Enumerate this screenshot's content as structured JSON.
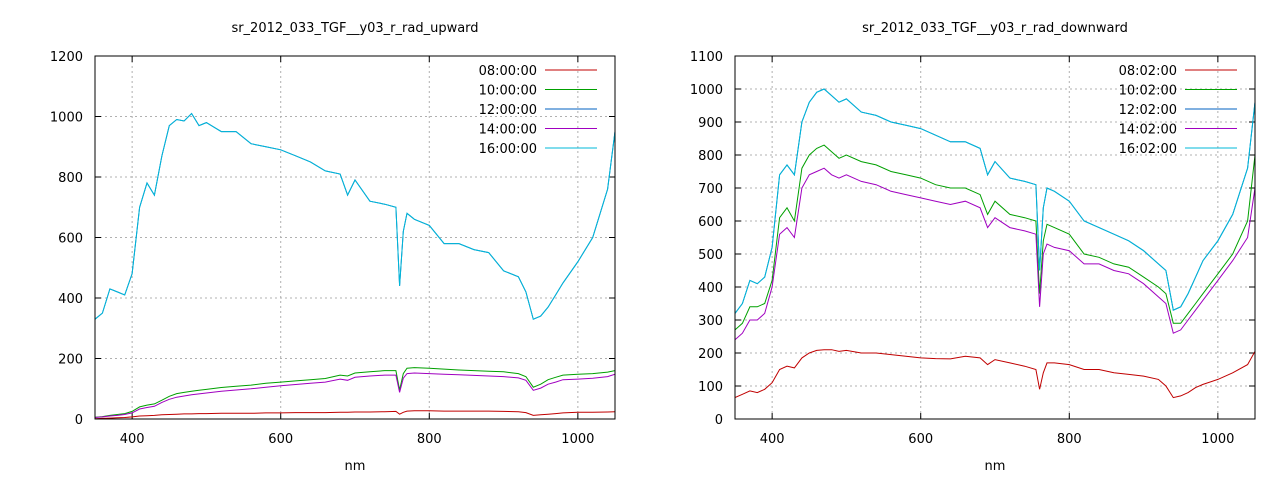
{
  "chart_data": [
    {
      "type": "line",
      "title": "sr_2012_033_TGF__y03_r_rad_upward",
      "xlabel": "nm",
      "ylabel": "",
      "xlim": [
        350,
        1050
      ],
      "ylim": [
        0,
        1200
      ],
      "xticks": [
        400,
        600,
        800,
        1000
      ],
      "yticks": [
        0,
        200,
        400,
        600,
        800,
        1000,
        1200
      ],
      "grid": true,
      "legend_position": "top-right",
      "x": [
        350,
        360,
        370,
        380,
        390,
        400,
        410,
        420,
        430,
        440,
        450,
        460,
        470,
        480,
        490,
        500,
        520,
        540,
        560,
        580,
        600,
        620,
        640,
        660,
        680,
        690,
        700,
        720,
        740,
        755,
        760,
        765,
        770,
        780,
        800,
        820,
        840,
        860,
        880,
        900,
        920,
        930,
        940,
        950,
        960,
        970,
        980,
        1000,
        1020,
        1040,
        1050
      ],
      "series": [
        {
          "name": "08:00:00",
          "color": "#c00000",
          "values": [
            1,
            2,
            3,
            4,
            5,
            7,
            10,
            11,
            12,
            14,
            15,
            16,
            17,
            17,
            18,
            18,
            19,
            19,
            19,
            20,
            20,
            21,
            21,
            21,
            22,
            22,
            23,
            23,
            24,
            25,
            16,
            22,
            26,
            27,
            27,
            26,
            26,
            26,
            26,
            25,
            24,
            21,
            12,
            14,
            16,
            18,
            20,
            22,
            22,
            23,
            24
          ]
        },
        {
          "name": "10:00:00",
          "color": "#00a000",
          "values": [
            6,
            8,
            12,
            15,
            18,
            25,
            40,
            46,
            50,
            62,
            75,
            84,
            88,
            92,
            95,
            98,
            104,
            108,
            112,
            118,
            122,
            126,
            130,
            134,
            145,
            142,
            152,
            156,
            160,
            160,
            96,
            150,
            168,
            170,
            168,
            165,
            162,
            160,
            158,
            156,
            150,
            140,
            105,
            115,
            130,
            138,
            145,
            148,
            150,
            155,
            160
          ]
        },
        {
          "name": "12:00:00",
          "color": "#0060c0",
          "values": [
            330,
            350,
            430,
            420,
            410,
            480,
            700,
            780,
            740,
            870,
            970,
            990,
            985,
            1010,
            970,
            980,
            950,
            950,
            910,
            900,
            890,
            870,
            850,
            820,
            810,
            740,
            790,
            720,
            710,
            700,
            440,
            620,
            680,
            660,
            640,
            580,
            580,
            560,
            550,
            490,
            470,
            420,
            330,
            340,
            370,
            410,
            450,
            520,
            600,
            760,
            950
          ]
        },
        {
          "name": "14:00:00",
          "color": "#a000c0",
          "values": [
            5,
            7,
            10,
            12,
            15,
            20,
            33,
            38,
            42,
            55,
            65,
            72,
            76,
            80,
            83,
            86,
            92,
            96,
            100,
            105,
            110,
            114,
            118,
            122,
            132,
            128,
            138,
            142,
            145,
            145,
            88,
            135,
            150,
            152,
            150,
            148,
            146,
            144,
            142,
            140,
            136,
            128,
            95,
            102,
            115,
            122,
            130,
            132,
            135,
            140,
            148
          ]
        },
        {
          "name": "16:00:00",
          "color": "#00b8d8",
          "values": [
            330,
            350,
            430,
            420,
            410,
            480,
            700,
            780,
            740,
            870,
            970,
            990,
            985,
            1010,
            970,
            980,
            950,
            950,
            910,
            900,
            890,
            870,
            850,
            820,
            810,
            740,
            790,
            720,
            710,
            700,
            440,
            620,
            680,
            660,
            640,
            580,
            580,
            560,
            550,
            490,
            470,
            420,
            330,
            340,
            370,
            410,
            450,
            520,
            600,
            760,
            950
          ]
        }
      ]
    },
    {
      "type": "line",
      "title": "sr_2012_033_TGF__y03_r_rad_downward",
      "xlabel": "nm",
      "ylabel": "",
      "xlim": [
        350,
        1050
      ],
      "ylim": [
        0,
        1100
      ],
      "xticks": [
        400,
        600,
        800,
        1000
      ],
      "yticks": [
        0,
        100,
        200,
        300,
        400,
        500,
        600,
        700,
        800,
        900,
        1000,
        1100
      ],
      "grid": true,
      "legend_position": "top-right",
      "x": [
        350,
        360,
        370,
        380,
        390,
        400,
        410,
        420,
        430,
        440,
        450,
        460,
        470,
        480,
        490,
        500,
        520,
        540,
        560,
        580,
        600,
        620,
        640,
        660,
        680,
        690,
        700,
        720,
        740,
        755,
        760,
        765,
        770,
        780,
        800,
        820,
        840,
        860,
        880,
        900,
        920,
        930,
        940,
        950,
        960,
        970,
        980,
        1000,
        1020,
        1040,
        1050
      ],
      "series": [
        {
          "name": "08:02:00",
          "color": "#c00000",
          "values": [
            65,
            75,
            85,
            80,
            90,
            110,
            150,
            160,
            155,
            185,
            200,
            208,
            210,
            210,
            205,
            208,
            200,
            200,
            195,
            190,
            185,
            183,
            182,
            190,
            185,
            165,
            180,
            170,
            160,
            150,
            90,
            140,
            170,
            170,
            165,
            150,
            150,
            140,
            135,
            130,
            120,
            100,
            65,
            70,
            80,
            95,
            105,
            120,
            140,
            165,
            205
          ]
        },
        {
          "name": "10:02:00",
          "color": "#00a000",
          "values": [
            270,
            290,
            340,
            340,
            350,
            420,
            610,
            640,
            600,
            760,
            800,
            820,
            830,
            810,
            790,
            800,
            780,
            770,
            750,
            740,
            730,
            710,
            700,
            700,
            680,
            620,
            660,
            620,
            610,
            600,
            380,
            540,
            590,
            580,
            560,
            500,
            490,
            470,
            460,
            430,
            400,
            380,
            290,
            290,
            320,
            350,
            380,
            440,
            500,
            600,
            800
          ]
        },
        {
          "name": "12:02:00",
          "color": "#0060c0",
          "values": [
            320,
            350,
            420,
            410,
            430,
            520,
            740,
            770,
            740,
            900,
            960,
            990,
            1000,
            980,
            960,
            970,
            930,
            920,
            900,
            890,
            880,
            860,
            840,
            840,
            820,
            740,
            780,
            730,
            720,
            710,
            450,
            640,
            700,
            690,
            660,
            600,
            580,
            560,
            540,
            510,
            470,
            450,
            330,
            340,
            380,
            430,
            480,
            540,
            620,
            760,
            960
          ]
        },
        {
          "name": "14:02:00",
          "color": "#a000c0",
          "values": [
            240,
            260,
            300,
            300,
            320,
            400,
            560,
            580,
            550,
            700,
            740,
            750,
            760,
            740,
            730,
            740,
            720,
            710,
            690,
            680,
            670,
            660,
            650,
            660,
            640,
            580,
            610,
            580,
            570,
            560,
            340,
            500,
            530,
            520,
            510,
            470,
            470,
            450,
            440,
            410,
            370,
            350,
            260,
            270,
            300,
            330,
            360,
            420,
            480,
            550,
            700
          ]
        },
        {
          "name": "16:02:00",
          "color": "#00b8d8",
          "values": [
            320,
            350,
            420,
            410,
            430,
            520,
            740,
            770,
            740,
            900,
            960,
            990,
            1000,
            980,
            960,
            970,
            930,
            920,
            900,
            890,
            880,
            860,
            840,
            840,
            820,
            740,
            780,
            730,
            720,
            710,
            450,
            640,
            700,
            690,
            660,
            600,
            580,
            560,
            540,
            510,
            470,
            450,
            330,
            340,
            380,
            430,
            480,
            540,
            620,
            760,
            960
          ]
        }
      ]
    }
  ]
}
